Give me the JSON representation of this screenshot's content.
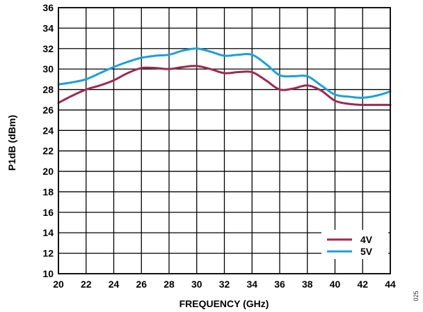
{
  "figure_id": "025",
  "chart_data": {
    "type": "line",
    "xlabel": "FREQUENCY (GHz)",
    "ylabel": "P1dB (dBm)",
    "xlim": [
      20,
      44
    ],
    "ylim": [
      10,
      36
    ],
    "x_ticks": [
      20,
      22,
      24,
      26,
      28,
      30,
      32,
      34,
      36,
      38,
      40,
      42,
      44
    ],
    "y_ticks": [
      10,
      12,
      14,
      16,
      18,
      20,
      22,
      24,
      26,
      28,
      30,
      32,
      34,
      36
    ],
    "grid": true,
    "legend_position": "bottom-right",
    "series": [
      {
        "name": "4V",
        "color": "#9b2a52",
        "x": [
          20,
          21,
          22,
          23,
          24,
          25,
          26,
          27,
          28,
          29,
          30,
          31,
          32,
          33,
          34,
          35,
          36,
          37,
          38,
          39,
          40,
          41,
          42,
          43,
          44
        ],
        "y": [
          26.7,
          27.4,
          28.0,
          28.4,
          28.9,
          29.6,
          30.1,
          30.1,
          30.0,
          30.2,
          30.3,
          30.0,
          29.6,
          29.7,
          29.7,
          28.9,
          28.0,
          28.1,
          28.4,
          27.9,
          26.9,
          26.6,
          26.5,
          26.5,
          26.5
        ]
      },
      {
        "name": "5V",
        "color": "#1ca0d7",
        "x": [
          20,
          21,
          22,
          23,
          24,
          25,
          26,
          27,
          28,
          29,
          30,
          31,
          32,
          33,
          34,
          35,
          36,
          37,
          38,
          39,
          40,
          41,
          42,
          43,
          44
        ],
        "y": [
          28.5,
          28.7,
          29.0,
          29.6,
          30.2,
          30.7,
          31.1,
          31.3,
          31.4,
          31.8,
          32.0,
          31.7,
          31.3,
          31.4,
          31.4,
          30.5,
          29.4,
          29.3,
          29.3,
          28.4,
          27.5,
          27.3,
          27.2,
          27.4,
          27.8
        ]
      }
    ]
  }
}
